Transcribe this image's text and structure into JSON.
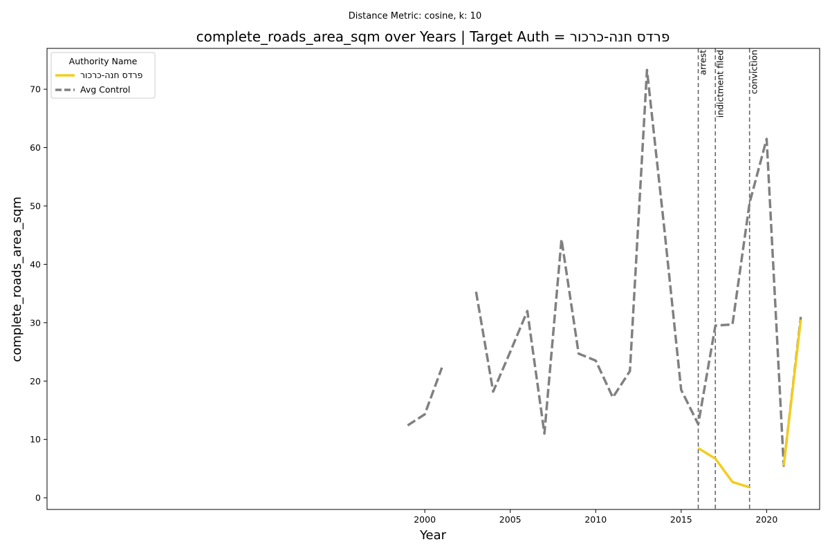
{
  "chart_data": {
    "type": "line",
    "suptitle": "Distance Metric: cosine, k: 10",
    "title": "complete_roads_area_sqm over Years | Target Auth = פרדס חנה-כרכור",
    "xlabel": "Year",
    "ylabel": "complete_roads_area_sqm",
    "xlim": [
      1977.9,
      2023.1
    ],
    "ylim": [
      -2,
      77
    ],
    "xticks": [
      2000,
      2005,
      2010,
      2015,
      2020
    ],
    "yticks": [
      0,
      10,
      20,
      30,
      40,
      50,
      60,
      70
    ],
    "legend": {
      "title": "Authority Name",
      "placement": "upper-left"
    },
    "series": [
      {
        "name": "פרדס חנה-כרכור",
        "color": "#f2cd1f",
        "style": "solid",
        "points": [
          [
            2016,
            8.5
          ],
          [
            2017,
            6.7
          ],
          [
            2018,
            2.7
          ],
          [
            2019,
            1.8
          ],
          [
            2020,
            null
          ],
          [
            2021,
            5.5
          ],
          [
            2022,
            30.5
          ]
        ]
      },
      {
        "name": "Avg Control",
        "color": "#808080",
        "style": "dashed",
        "points": [
          [
            1999,
            12.4
          ],
          [
            2000,
            14.3
          ],
          [
            2001,
            22.3
          ],
          [
            2002,
            null
          ],
          [
            2003,
            35.3
          ],
          [
            2004,
            18.2
          ],
          [
            2005,
            25.0
          ],
          [
            2006,
            32.0
          ],
          [
            2007,
            11.0
          ],
          [
            2008,
            44.3
          ],
          [
            2009,
            24.7
          ],
          [
            2010,
            23.5
          ],
          [
            2011,
            17.2
          ],
          [
            2012,
            21.7
          ],
          [
            2013,
            73.3
          ],
          [
            2014,
            46.5
          ],
          [
            2015,
            18.5
          ],
          [
            2016,
            12.6
          ],
          [
            2017,
            29.5
          ],
          [
            2018,
            29.7
          ],
          [
            2019,
            50.5
          ],
          [
            2020,
            61.5
          ],
          [
            2021,
            5.5
          ],
          [
            2022,
            31.0
          ]
        ]
      }
    ],
    "events": [
      {
        "year": 2016,
        "label": "arrest"
      },
      {
        "year": 2017,
        "label": "indictment filed"
      },
      {
        "year": 2019,
        "label": "conviction"
      }
    ]
  }
}
